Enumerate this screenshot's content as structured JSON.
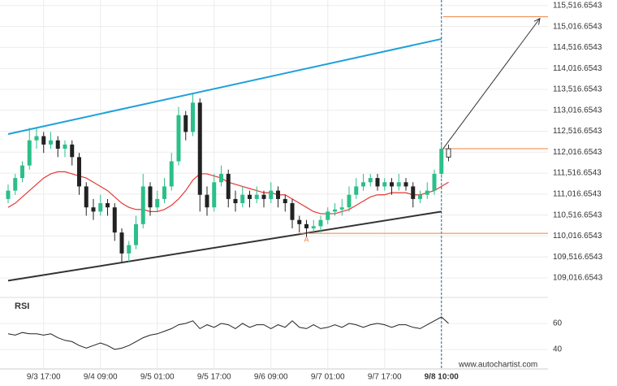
{
  "chart_data": {
    "type": "candlestick",
    "categories": [
      null,
      null,
      null,
      null,
      null,
      "9/3 17:00",
      null,
      null,
      null,
      null,
      null,
      null,
      null,
      "9/4 09:00",
      null,
      null,
      null,
      null,
      null,
      null,
      null,
      "9/5 01:00",
      null,
      null,
      null,
      null,
      null,
      null,
      null,
      "9/5 17:00",
      null,
      null,
      null,
      null,
      null,
      null,
      null,
      "9/6 09:00",
      null,
      null,
      null,
      null,
      null,
      null,
      null,
      "9/7 01:00",
      null,
      null,
      null,
      null,
      null,
      null,
      null,
      "9/7 17:00",
      null,
      null,
      null,
      null,
      null,
      null,
      null,
      "9/8 10:00",
      null
    ],
    "candles": [
      [
        110900,
        111250,
        110800,
        111100
      ],
      [
        111100,
        111500,
        111000,
        111400
      ],
      [
        111400,
        111800,
        111300,
        111700
      ],
      [
        111700,
        112600,
        111600,
        112300
      ],
      [
        112300,
        112600,
        112100,
        112400
      ],
      [
        112400,
        112500,
        112000,
        112200
      ],
      [
        112200,
        112500,
        112100,
        112300
      ],
      [
        112300,
        112400,
        111900,
        112100
      ],
      [
        112100,
        112300,
        111900,
        112200
      ],
      [
        112200,
        112300,
        111700,
        111900
      ],
      [
        111900,
        112000,
        111000,
        111200
      ],
      [
        111200,
        111300,
        110500,
        110700
      ],
      [
        110700,
        110900,
        110400,
        110600
      ],
      [
        110600,
        111000,
        110500,
        110800
      ],
      [
        110800,
        110900,
        110500,
        110700
      ],
      [
        110700,
        110800,
        109900,
        110100
      ],
      [
        110100,
        110200,
        109400,
        109600
      ],
      [
        109600,
        109900,
        109400,
        109800
      ],
      [
        109800,
        110500,
        109700,
        110300
      ],
      [
        110300,
        111500,
        110200,
        111200
      ],
      [
        111200,
        111300,
        110500,
        110700
      ],
      [
        110700,
        111100,
        110600,
        110900
      ],
      [
        110900,
        111400,
        110800,
        111200
      ],
      [
        111200,
        112000,
        111100,
        111800
      ],
      [
        111800,
        113100,
        111700,
        112900
      ],
      [
        112900,
        113000,
        112300,
        112500
      ],
      [
        112500,
        113400,
        112400,
        113200
      ],
      [
        113200,
        113300,
        110600,
        111000
      ],
      [
        111000,
        111200,
        110500,
        110700
      ],
      [
        110700,
        111500,
        110600,
        111300
      ],
      [
        111300,
        111700,
        111200,
        111500
      ],
      [
        111500,
        111600,
        110700,
        110900
      ],
      [
        110900,
        111100,
        110600,
        110800
      ],
      [
        110800,
        111200,
        110700,
        111000
      ],
      [
        111000,
        111100,
        110700,
        110900
      ],
      [
        110900,
        111200,
        110800,
        111000
      ],
      [
        111000,
        111100,
        110700,
        110900
      ],
      [
        110900,
        111300,
        110800,
        111100
      ],
      [
        111100,
        111200,
        110700,
        110900
      ],
      [
        110900,
        111000,
        110600,
        110800
      ],
      [
        110800,
        110900,
        110200,
        110400
      ],
      [
        110400,
        110500,
        110100,
        110300
      ],
      [
        110300,
        110400,
        110000,
        110200
      ],
      [
        110200,
        110400,
        110100,
        110250
      ],
      [
        110250,
        110500,
        110100,
        110400
      ],
      [
        110400,
        110700,
        110300,
        110600
      ],
      [
        110600,
        110800,
        110500,
        110650
      ],
      [
        110650,
        110900,
        110500,
        110700
      ],
      [
        110700,
        111200,
        110600,
        111000
      ],
      [
        111000,
        111400,
        110900,
        111200
      ],
      [
        111200,
        111500,
        111100,
        111300
      ],
      [
        111300,
        111500,
        111200,
        111400
      ],
      [
        111400,
        111500,
        111100,
        111200
      ],
      [
        111200,
        111400,
        111100,
        111300
      ],
      [
        111300,
        111400,
        111000,
        111200
      ],
      [
        111200,
        111500,
        111100,
        111300
      ],
      [
        111300,
        111400,
        111100,
        111200
      ],
      [
        111200,
        111300,
        110700,
        110900
      ],
      [
        110900,
        111100,
        110800,
        111000
      ],
      [
        111000,
        111300,
        110900,
        111100
      ],
      [
        111100,
        111600,
        111000,
        111500
      ],
      [
        111500,
        112200,
        111400,
        112100
      ],
      [
        112100,
        112200,
        111800,
        111900
      ]
    ],
    "up_color": "#2bbf8a",
    "down_color": "#222222",
    "moving_average": {
      "color": "#e53935",
      "values": [
        110700,
        110800,
        110950,
        111100,
        111250,
        111400,
        111500,
        111550,
        111550,
        111500,
        111450,
        111400,
        111300,
        111200,
        111100,
        110950,
        110800,
        110700,
        110650,
        110650,
        110600,
        110600,
        110650,
        110750,
        110900,
        111100,
        111350,
        111500,
        111500,
        111450,
        111400,
        111300,
        111250,
        111200,
        111150,
        111100,
        111050,
        111050,
        111000,
        111000,
        110900,
        110800,
        110700,
        110600,
        110550,
        110550,
        110550,
        110600,
        110650,
        110750,
        110850,
        110950,
        111000,
        111000,
        111050,
        111050,
        111050,
        111000,
        111000,
        111050,
        111100,
        111200,
        111300
      ]
    },
    "ylim": [
      108570,
      115650
    ],
    "yticks": [
      {
        "value": 115516.6543,
        "label": "115,516.6543"
      },
      {
        "value": 115016.6543,
        "label": "115,016.6543"
      },
      {
        "value": 114516.6543,
        "label": "114,516.6543"
      },
      {
        "value": 114016.6543,
        "label": "114,016.6543"
      },
      {
        "value": 113516.6543,
        "label": "113,516.6543"
      },
      {
        "value": 113016.6543,
        "label": "113,016.6543"
      },
      {
        "value": 112516.6543,
        "label": "112,516.6543"
      },
      {
        "value": 112016.6543,
        "label": "112,016.6543"
      },
      {
        "value": 111516.6543,
        "label": "111,516.6543"
      },
      {
        "value": 111016.6543,
        "label": "111,016.6543"
      },
      {
        "value": 110516.6543,
        "label": "110,516.6543"
      },
      {
        "value": 110016.6543,
        "label": "110,016.6543"
      },
      {
        "value": 109516.6543,
        "label": "109,516.6543"
      },
      {
        "value": 109016.6543,
        "label": "109,016.6543"
      }
    ],
    "upper_channel": {
      "color": "#1ea0dc",
      "start": 112450,
      "end": 114720
    },
    "lower_channel": {
      "color": "#333333",
      "start": 108950,
      "end": 110600
    },
    "resistance_level": 112100,
    "support_level": 110080,
    "support_label": "A",
    "target_level": 115250,
    "level_color": "#f08040",
    "rsi": {
      "label": "RSI",
      "color": "#222222",
      "ylim": [
        27.5,
        78.75
      ],
      "yticks": [
        40,
        60
      ],
      "values": [
        52,
        51,
        53,
        52,
        52,
        51,
        52,
        49,
        47,
        46,
        43,
        41,
        43,
        45,
        43,
        40,
        41,
        43,
        46,
        49,
        51,
        52,
        54,
        56,
        59,
        60,
        62,
        56,
        59,
        57,
        60,
        59,
        56,
        60,
        57,
        59,
        59,
        56,
        59,
        57,
        62,
        57,
        56,
        59,
        56,
        57,
        59,
        57,
        60,
        59,
        57,
        59,
        60,
        59,
        57,
        59,
        59,
        57,
        56,
        59,
        62,
        65,
        60
      ]
    },
    "source": "www.autochartist.com"
  }
}
